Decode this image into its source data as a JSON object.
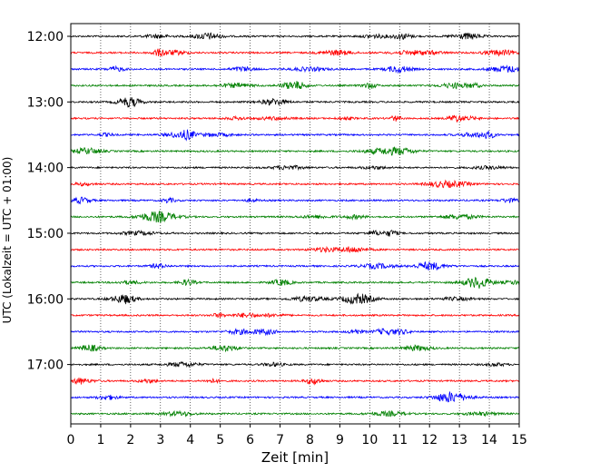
{
  "chart_data": {
    "type": "line",
    "title": "",
    "xlabel": "Zeit  [min]",
    "ylabel": "UTC (Lokalzeit = UTC + 01:00)",
    "xlim": [
      0,
      15
    ],
    "x_ticks": [
      0,
      1,
      2,
      3,
      4,
      5,
      6,
      7,
      8,
      9,
      10,
      11,
      12,
      13,
      14,
      15
    ],
    "grid_x": true,
    "grid_style": "dotted",
    "hour_labels": [
      "12:00",
      "13:00",
      "14:00",
      "15:00",
      "16:00",
      "17:00"
    ],
    "traces_per_hour": 4,
    "trace_minutes": 15,
    "trace_colors": [
      "#000000",
      "#ff0000",
      "#0000ff",
      "#008000"
    ],
    "traces": [
      {
        "start": "12:00"
      },
      {
        "start": "12:15"
      },
      {
        "start": "12:30"
      },
      {
        "start": "12:45"
      },
      {
        "start": "13:00"
      },
      {
        "start": "13:15"
      },
      {
        "start": "13:30"
      },
      {
        "start": "13:45"
      },
      {
        "start": "14:00"
      },
      {
        "start": "14:15"
      },
      {
        "start": "14:30"
      },
      {
        "start": "14:45"
      },
      {
        "start": "15:00"
      },
      {
        "start": "15:15"
      },
      {
        "start": "15:30"
      },
      {
        "start": "15:45"
      },
      {
        "start": "16:00"
      },
      {
        "start": "16:15"
      },
      {
        "start": "16:30"
      },
      {
        "start": "16:45"
      },
      {
        "start": "17:00"
      },
      {
        "start": "17:15"
      },
      {
        "start": "17:30"
      },
      {
        "start": "17:45"
      }
    ]
  }
}
